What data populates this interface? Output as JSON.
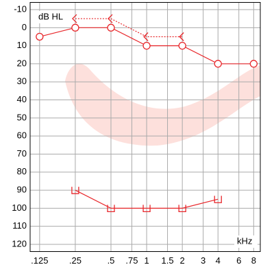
{
  "chart_data": {
    "type": "line",
    "y_label": "dB HL",
    "x_label": "kHz",
    "xscale": "log",
    "y_inverted": true,
    "grid": true,
    "x": [
      0.125,
      0.25,
      0.5,
      1,
      2,
      4,
      8
    ],
    "xlim": [
      0.104,
      9.1
    ],
    "xticks": [
      {
        "value": 0.125,
        "label": ".125"
      },
      {
        "value": 0.25,
        "label": ".25"
      },
      {
        "value": 0.5,
        "label": ".5"
      },
      {
        "value": 0.75,
        "label": ".75"
      },
      1,
      1.5,
      2,
      3,
      4,
      6,
      8
    ],
    "ylim": [
      -14,
      124
    ],
    "yticks": [
      -10,
      0,
      10,
      20,
      30,
      40,
      50,
      60,
      70,
      80,
      90,
      100,
      110,
      120
    ],
    "series": [
      {
        "color": "#e8262a",
        "marker": "circle",
        "line": "solid",
        "values": [
          5,
          0,
          0,
          10,
          10,
          20,
          20
        ]
      },
      {
        "color": "#e8262a",
        "marker": "angle",
        "line": "dotted",
        "values": [
          null,
          -5,
          -5,
          5,
          5,
          null,
          null
        ]
      },
      {
        "color": "#e8262a",
        "marker": "u",
        "line": "solid",
        "values": [
          null,
          90,
          100,
          100,
          100,
          95,
          null
        ]
      }
    ]
  }
}
